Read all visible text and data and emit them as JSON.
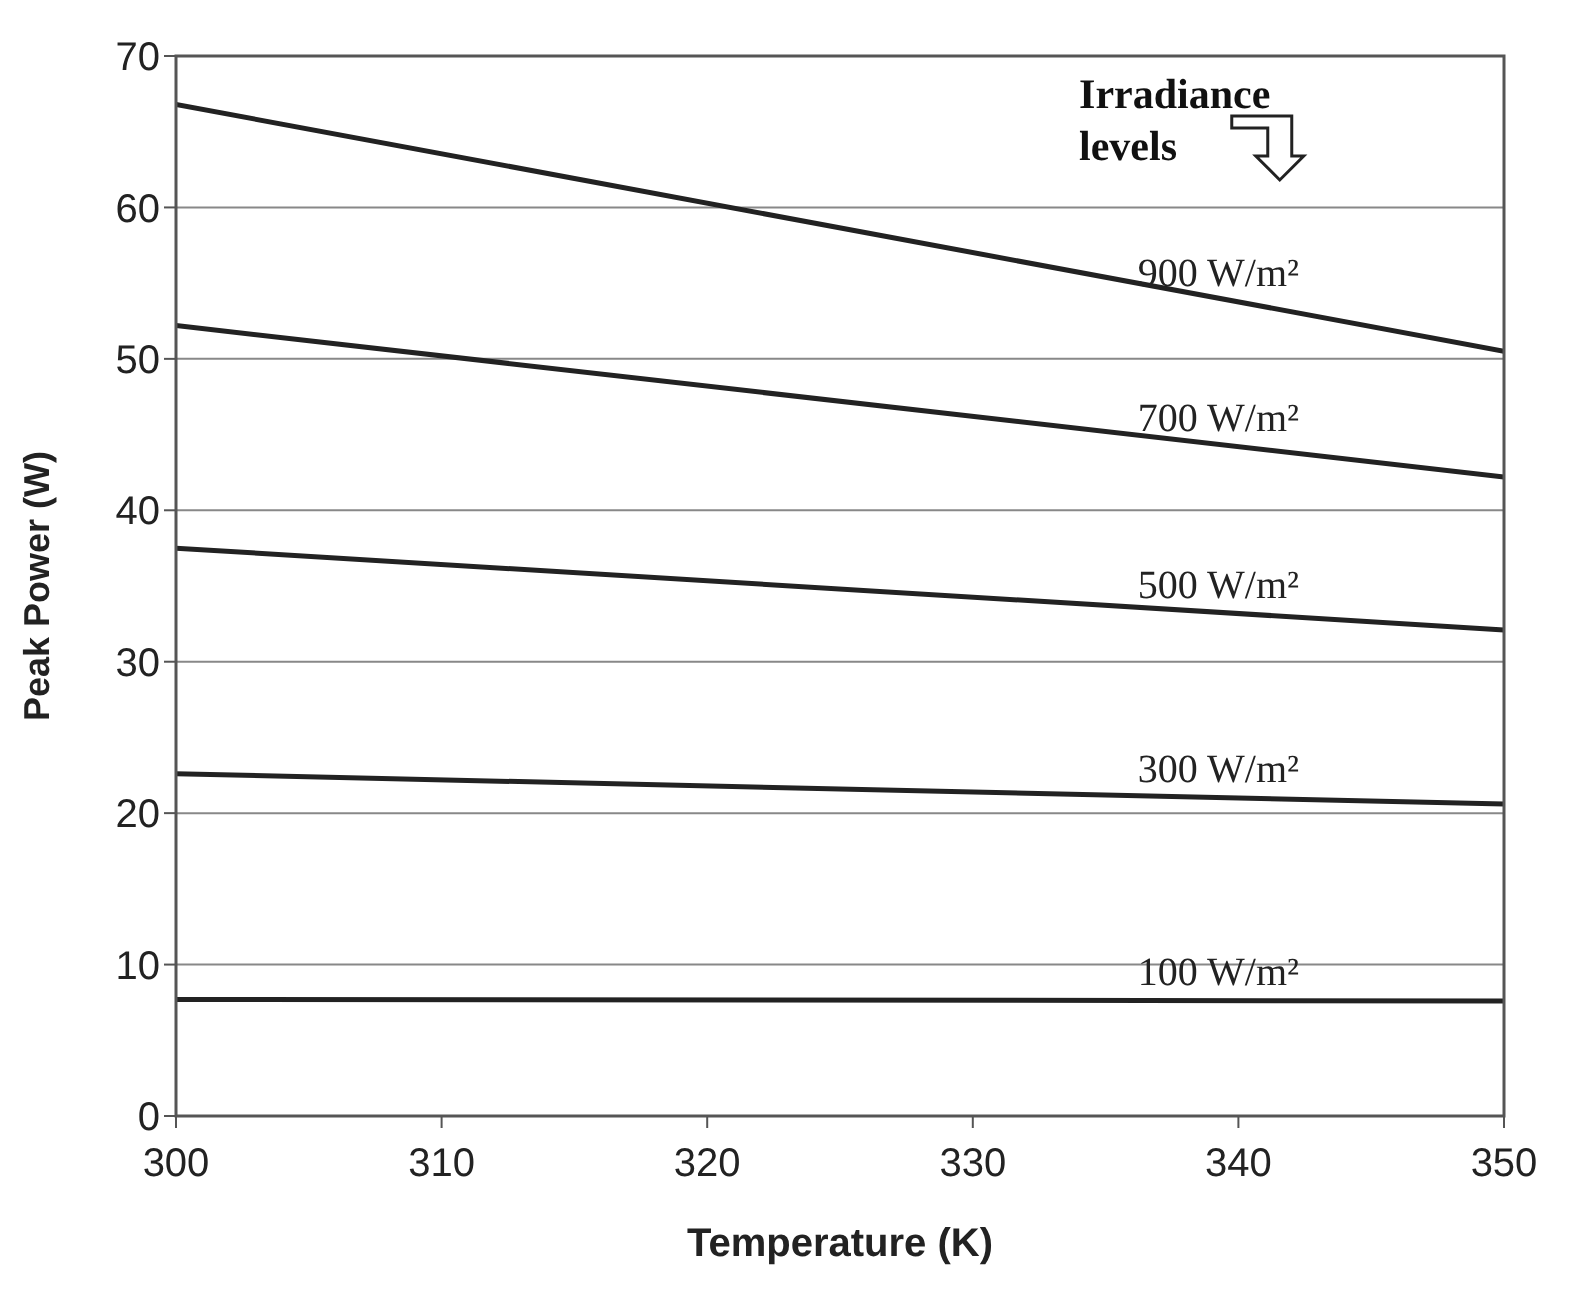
{
  "chart_data": {
    "type": "line",
    "xlabel": "Temperature (K)",
    "ylabel": "Peak Power (W)",
    "annotations": [
      "Irradiance levels"
    ],
    "x": [
      300,
      350
    ],
    "series": [
      {
        "name": "900 W/m²",
        "color": "#222222",
        "values": [
          66.8,
          50.5
        ]
      },
      {
        "name": "700 W/m²",
        "color": "#222222",
        "values": [
          52.2,
          42.2
        ]
      },
      {
        "name": "500 W/m²",
        "color": "#222222",
        "values": [
          37.5,
          32.1
        ]
      },
      {
        "name": "300 W/m²",
        "color": "#222222",
        "values": [
          22.6,
          20.6
        ]
      },
      {
        "name": "100 W/m²",
        "color": "#222222",
        "values": [
          7.7,
          7.6
        ]
      }
    ],
    "xlim": [
      300,
      350
    ],
    "xticks": [
      300,
      310,
      320,
      330,
      340,
      350
    ],
    "ylim": [
      0,
      70
    ],
    "yticks": [
      0,
      10,
      20,
      30,
      40,
      50,
      60,
      70
    ],
    "grid": "y",
    "legend": false,
    "marker": "none",
    "line_style": "solid"
  }
}
